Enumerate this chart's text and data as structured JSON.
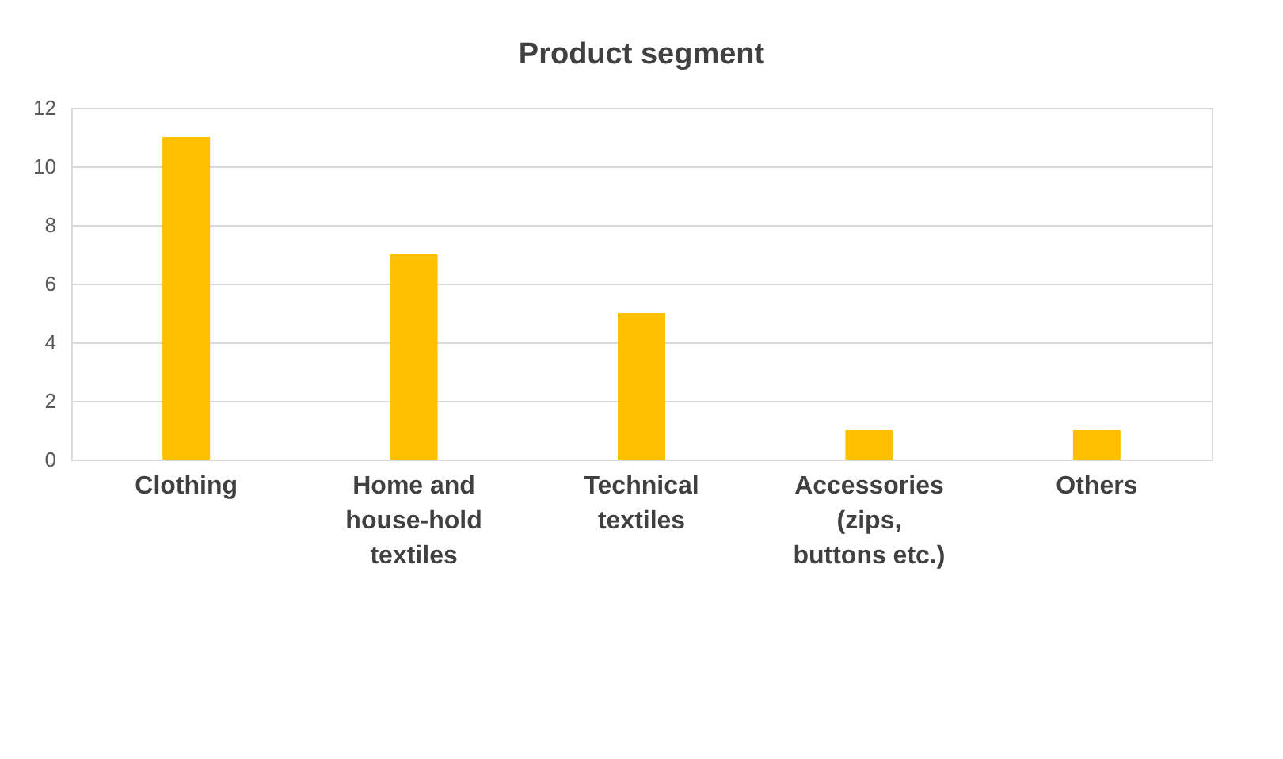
{
  "chart_data": {
    "type": "bar",
    "title": "Product segment",
    "categories": [
      "Clothing",
      "Home and house-hold textiles",
      "Technical textiles",
      "Accessories (zips, buttons etc.)",
      "Others"
    ],
    "values": [
      11,
      7,
      5,
      1,
      1
    ],
    "color": "#ffc000",
    "ylim": [
      0,
      12
    ],
    "yticks": [
      0,
      2,
      4,
      6,
      8,
      10,
      12
    ],
    "grid": "y",
    "legend": false
  }
}
